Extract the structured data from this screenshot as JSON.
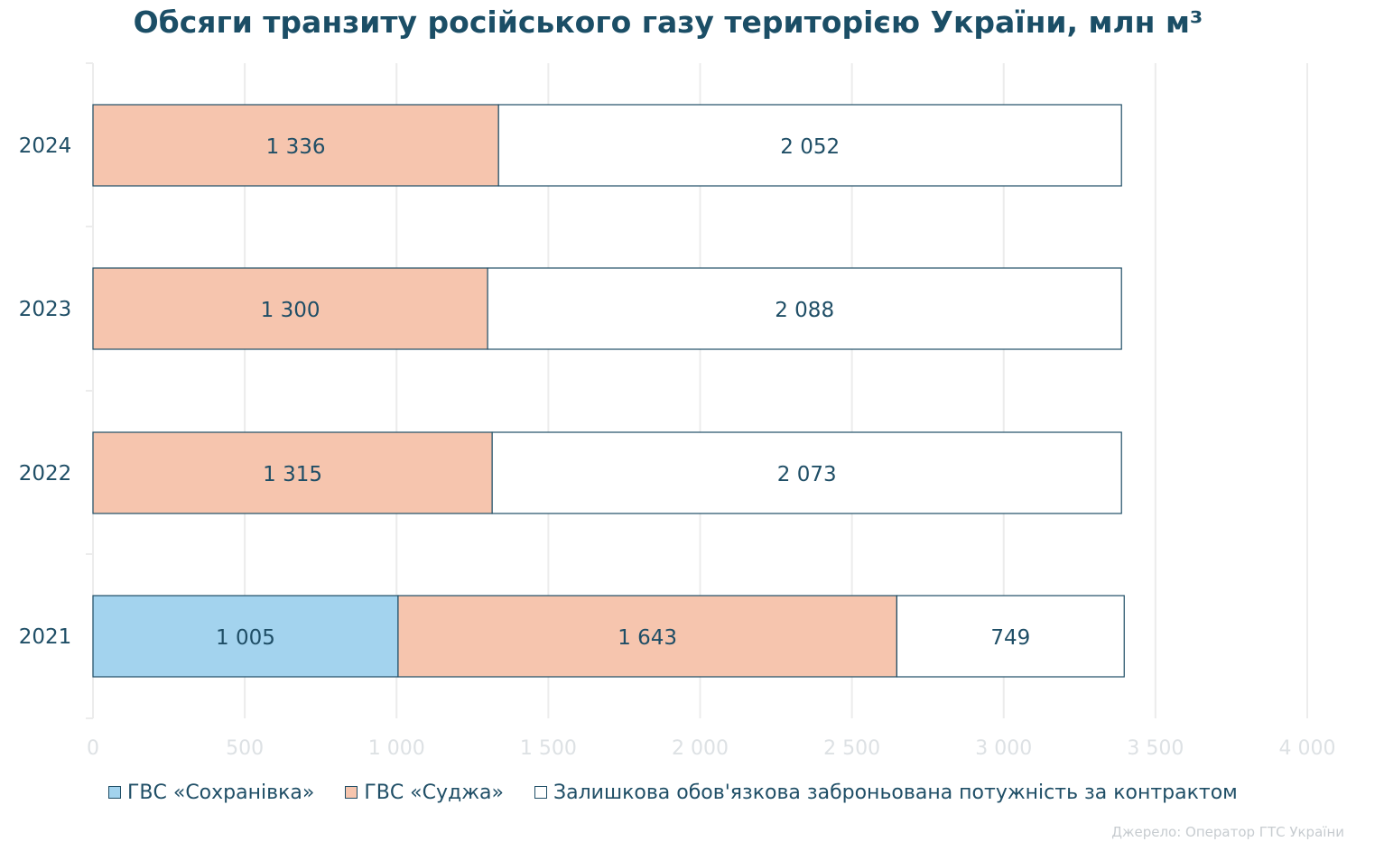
{
  "chart_data": {
    "type": "bar",
    "orientation": "horizontal",
    "stacked": true,
    "title": "Обсяги транзиту російського газу територією України, млн м³",
    "categories": [
      "2021",
      "2022",
      "2023",
      "2024"
    ],
    "series": [
      {
        "name": "ГВС «Сохранівка»",
        "color": "#a3d3ee",
        "values": [
          1005,
          0,
          0,
          0
        ],
        "labels": [
          "1 005",
          "",
          "",
          ""
        ]
      },
      {
        "name": "ГВС «Суджа»",
        "color": "#f6c5ae",
        "values": [
          1643,
          1315,
          1300,
          1336
        ],
        "labels": [
          "1 643",
          "1 315",
          "1 300",
          "1 336"
        ]
      },
      {
        "name": "Залишкова обов'язкова заброньована потужність за контрактом",
        "color": "#ffffff",
        "values": [
          749,
          2073,
          2088,
          2052
        ],
        "labels": [
          "749",
          "2 073",
          "2 088",
          "2 052"
        ]
      }
    ],
    "xlim": [
      0,
      4000
    ],
    "xticks": [
      0,
      500,
      1000,
      1500,
      2000,
      2500,
      3000,
      3500,
      4000
    ],
    "xtick_labels": [
      "0",
      "500",
      "1 000",
      "1 500",
      "2 000",
      "2 500",
      "3 000",
      "3 500",
      "4 000"
    ],
    "grid": true,
    "legend_position": "bottom",
    "source": "Джерело: Оператор ГТС України"
  }
}
